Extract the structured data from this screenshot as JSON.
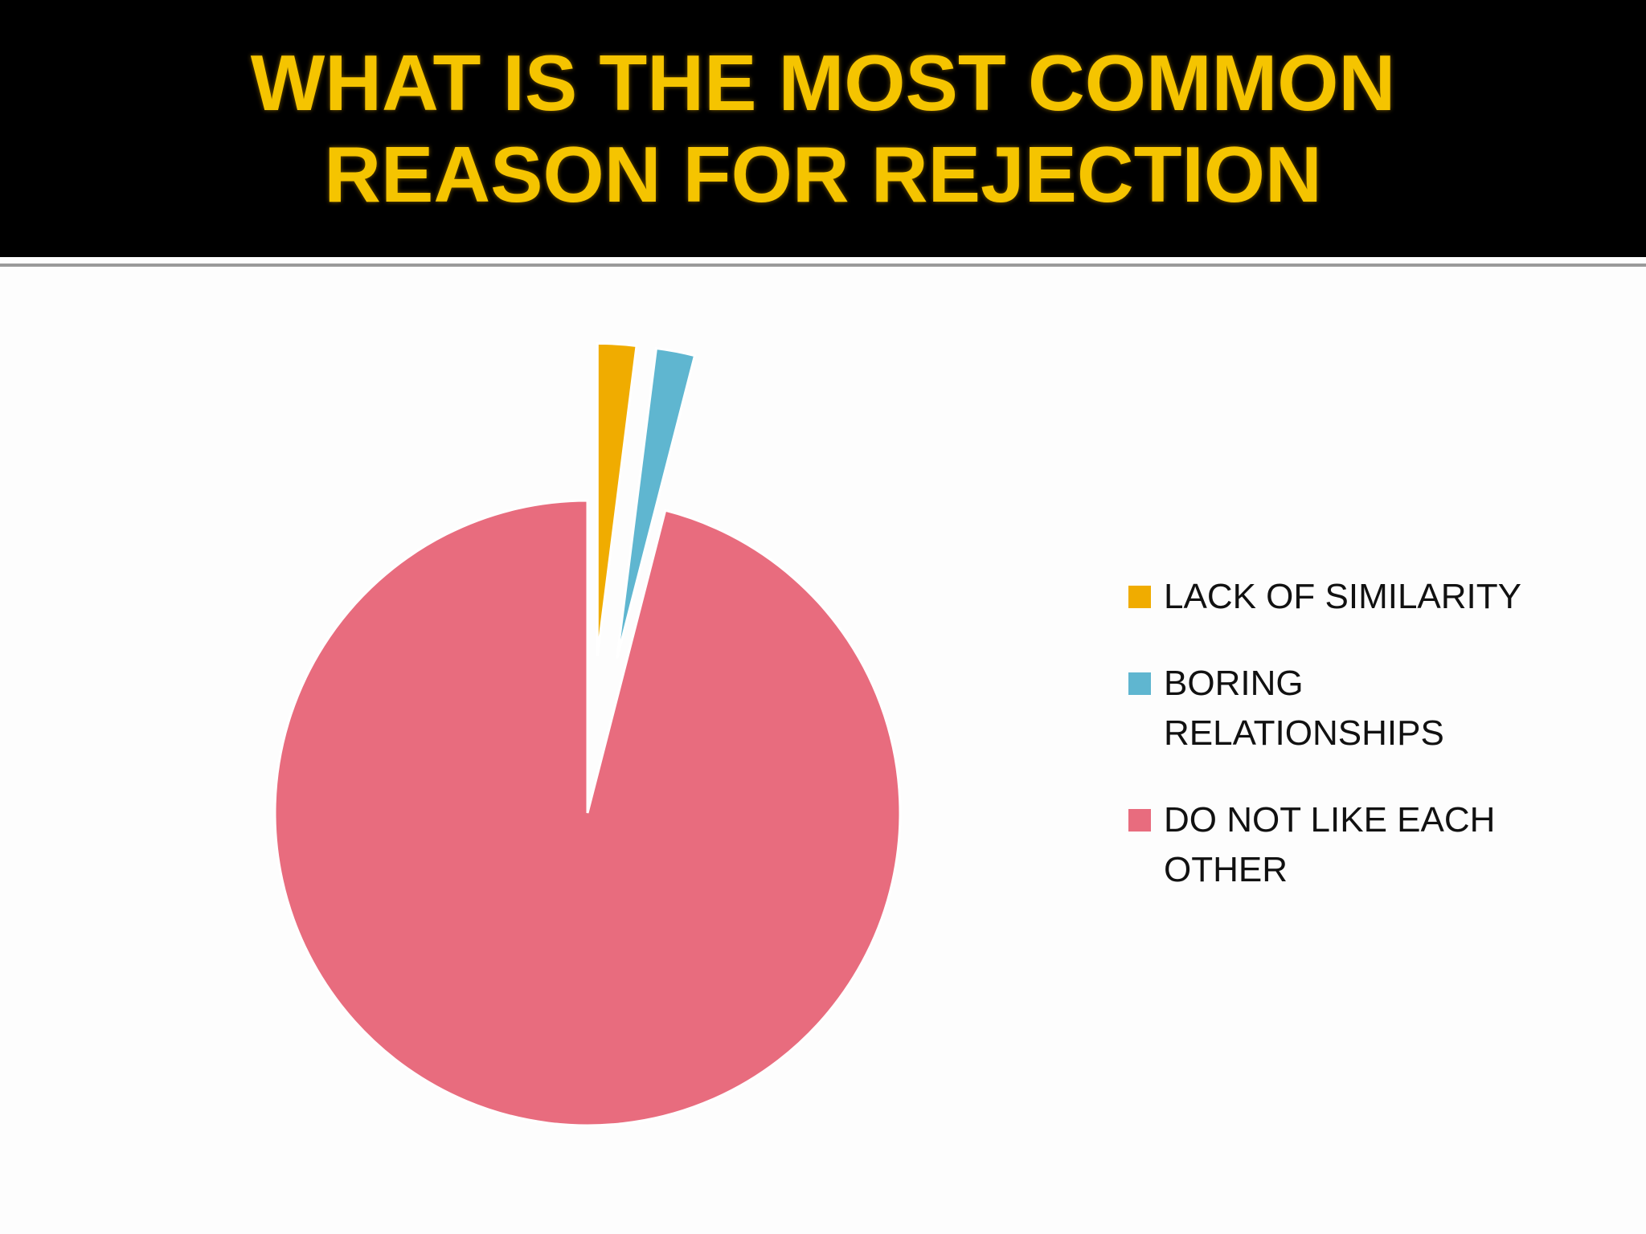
{
  "chart_data": {
    "type": "pie",
    "title": "WHAT IS THE MOST COMMON REASON FOR REJECTION",
    "categories": [
      "LACK OF SIMILARITY",
      "BORING RELATIONSHIPS",
      "DO NOT LIKE EACH OTHER"
    ],
    "values": [
      2,
      2,
      96
    ],
    "colors": [
      "#f0ac00",
      "#5fb6d0",
      "#e86c7e"
    ],
    "legend": "right"
  }
}
